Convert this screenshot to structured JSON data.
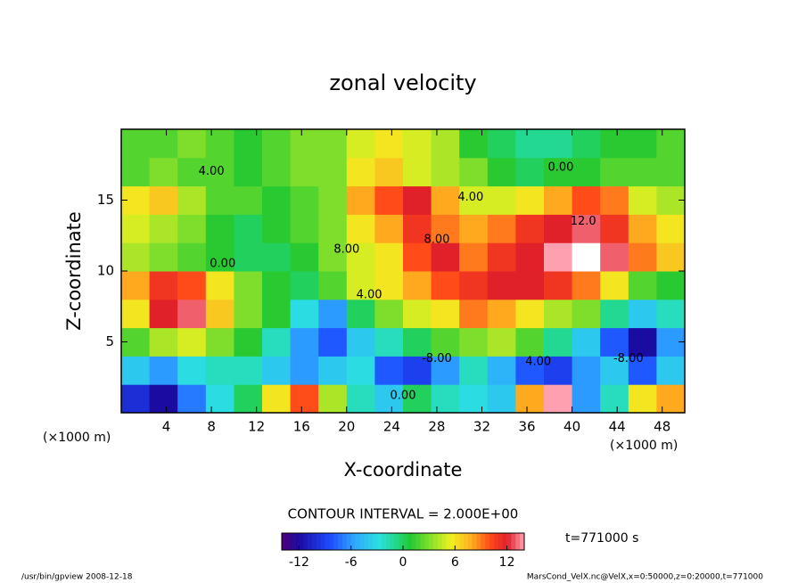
{
  "chart_data": {
    "type": "contour",
    "title": "zonal velocity",
    "x_label": "X-coordinate",
    "y_label": "Z-coordinate",
    "axis_unit": "(×1000 m)",
    "x": [
      1.25,
      3.75,
      6.25,
      8.75,
      11.25,
      13.75,
      16.25,
      18.75,
      21.25,
      23.75,
      26.25,
      28.75,
      31.25,
      33.75,
      36.25,
      38.75,
      41.25,
      43.75,
      46.25,
      48.75
    ],
    "z": [
      1,
      3,
      5,
      7,
      9,
      11,
      13,
      15,
      17,
      19
    ],
    "values": [
      [
        -10,
        -12,
        -7,
        -3,
        0,
        6,
        10,
        4,
        -2,
        -4,
        0,
        -2,
        -3,
        -4,
        8,
        14,
        -6,
        -2,
        6,
        8
      ],
      [
        -4,
        -6,
        -3,
        -2,
        -2,
        -4,
        -6,
        -4,
        -3,
        -8,
        -9,
        -6,
        -2,
        -5,
        -8,
        -9,
        -6,
        -4,
        -8,
        -4
      ],
      [
        2,
        4,
        5,
        3,
        1,
        -2,
        -6,
        -8,
        -4,
        -2,
        0,
        2,
        3,
        4,
        2,
        -1,
        -4,
        -8,
        -12,
        -6
      ],
      [
        6,
        12,
        13,
        7,
        3,
        1,
        -3,
        -6,
        0,
        3,
        5,
        6,
        9,
        8,
        6,
        4,
        3,
        -1,
        -4,
        -2
      ],
      [
        8,
        11,
        10,
        6,
        3,
        1,
        0,
        2,
        5,
        6,
        8,
        10,
        11,
        12,
        12,
        11,
        9,
        6,
        2,
        1
      ],
      [
        4,
        3,
        2,
        1,
        0,
        0,
        1,
        3,
        5,
        6,
        10,
        12,
        9,
        11,
        12,
        14,
        15,
        13,
        9,
        7
      ],
      [
        5,
        4,
        3,
        1,
        0,
        1,
        2,
        3,
        6,
        8,
        11,
        9,
        8,
        9,
        11,
        12,
        13,
        11,
        8,
        6
      ],
      [
        6,
        7,
        4,
        2,
        2,
        1,
        2,
        3,
        8,
        10,
        12,
        8,
        5,
        5,
        6,
        8,
        10,
        9,
        5,
        4
      ],
      [
        2,
        3,
        2,
        2,
        1,
        2,
        3,
        3,
        6,
        7,
        5,
        4,
        3,
        1,
        0,
        1,
        1,
        2,
        2,
        2
      ],
      [
        2,
        2,
        3,
        2,
        1,
        2,
        3,
        3,
        5,
        6,
        5,
        4,
        1,
        0,
        -1,
        -1,
        0,
        1,
        1,
        2
      ]
    ],
    "xlim": [
      0,
      50
    ],
    "xticks": [
      4,
      8,
      12,
      16,
      20,
      24,
      28,
      32,
      36,
      40,
      44,
      48
    ],
    "ylim": [
      0,
      20
    ],
    "yticks": [
      5,
      10,
      15
    ],
    "clim": [
      -14,
      14
    ],
    "cticks": [
      -12,
      -6,
      0,
      6,
      12
    ],
    "contour_labels": [
      {
        "value": 4,
        "label": "4.00"
      },
      {
        "value": 0,
        "label": "0.00"
      },
      {
        "value": 4,
        "label": "4.00"
      },
      {
        "value": 8,
        "label": "8.00"
      },
      {
        "value": 8,
        "label": "8.00"
      },
      {
        "value": 0,
        "label": "0.00"
      },
      {
        "value": 12,
        "label": "12.0"
      },
      {
        "value": 4,
        "label": "4.00"
      },
      {
        "value": -8,
        "label": "-8.00"
      },
      {
        "value": 0,
        "label": "0.00"
      },
      {
        "value": -8,
        "label": "-8.00"
      },
      {
        "value": 4,
        "label": "4.00"
      }
    ],
    "contour_interval": "CONTOUR INTERVAL = 2.000E+00",
    "time_label": "t=771000 s",
    "footer_left": "/usr/bin/gpview   2008-12-18",
    "footer_right": "MarsCond_VelX.nc@VelX,x=0:50000,z=0:20000,t=771000"
  }
}
